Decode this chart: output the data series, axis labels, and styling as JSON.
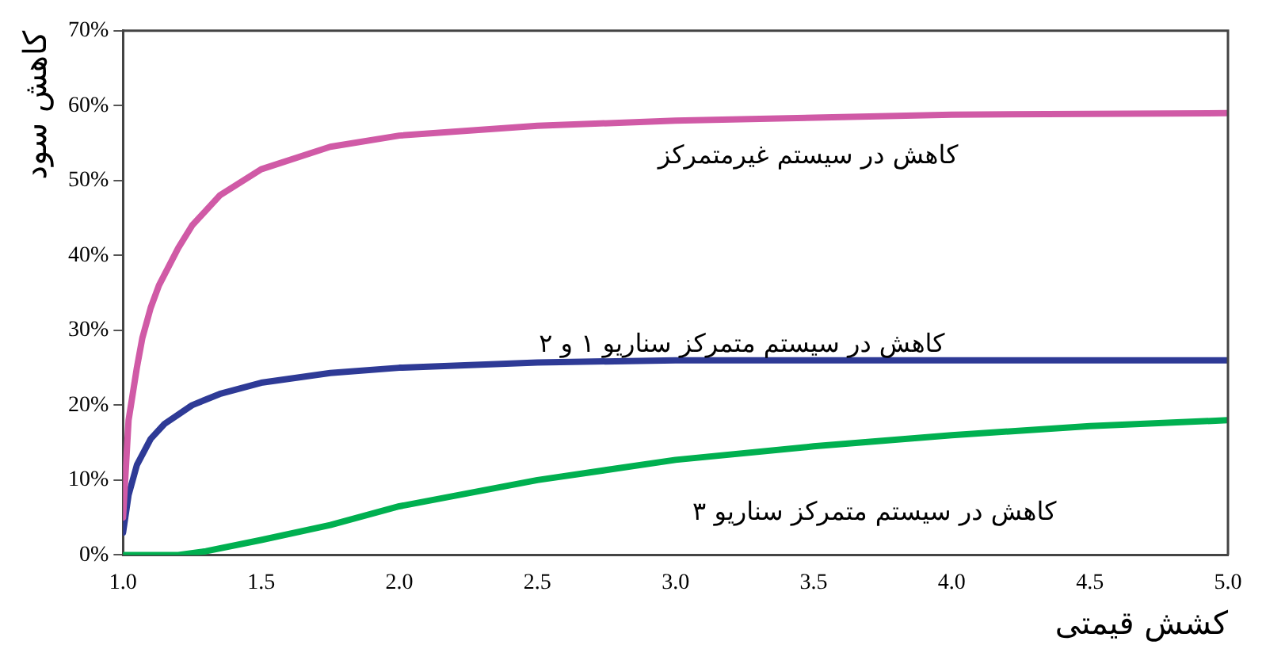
{
  "chart_data": {
    "type": "line",
    "xlabel": "کشش قیمتی",
    "ylabel": "کاهش سود",
    "xlim": [
      1,
      5
    ],
    "xticks": [
      {
        "value": 1,
        "label": "1.0"
      },
      1.5,
      {
        "value": 2,
        "label": "2.0"
      },
      2.5,
      {
        "value": 3,
        "label": "3.0"
      },
      3.5,
      {
        "value": 4,
        "label": "4.0"
      },
      4.5,
      {
        "value": 5,
        "label": "5.0"
      }
    ],
    "ylim": [
      0,
      70
    ],
    "yticks": [
      {
        "value": 0,
        "label": "0%"
      },
      {
        "value": 10,
        "label": "10%"
      },
      {
        "value": 20,
        "label": "20%"
      },
      {
        "value": 30,
        "label": "30%"
      },
      {
        "value": 40,
        "label": "40%"
      },
      {
        "value": 50,
        "label": "50%"
      },
      {
        "value": 60,
        "label": "60%"
      },
      {
        "value": 70,
        "label": "70%"
      }
    ],
    "grid": false,
    "legend": false,
    "marker": "none",
    "line_style": "solid",
    "series": [
      {
        "name": "کاهش در سیستم غیرمتمرکز",
        "color": "#d05aa6",
        "x": [
          1,
          1.02,
          1.05,
          1.07,
          1.1,
          1.13,
          1.2,
          1.25,
          1.35,
          1.5,
          1.75,
          2,
          2.5,
          3,
          4,
          5
        ],
        "values": [
          5,
          18,
          25,
          29,
          33,
          36,
          41,
          44,
          48,
          51.5,
          54.5,
          56,
          57.3,
          58,
          58.8,
          59
        ]
      },
      {
        "name": "کاهش در سیستم متمرکز سناریو ۱ و ۲",
        "color": "#2e3a96",
        "x": [
          1,
          1.02,
          1.05,
          1.1,
          1.15,
          1.25,
          1.35,
          1.5,
          1.75,
          2,
          2.5,
          3,
          4,
          5
        ],
        "values": [
          3,
          8,
          12,
          15.5,
          17.5,
          20,
          21.5,
          23,
          24.3,
          25,
          25.7,
          26,
          26,
          26
        ]
      },
      {
        "name": "کاهش در سیستم متمرکز سناریو ۳",
        "color": "#00b050",
        "x": [
          1,
          1.2,
          1.3,
          1.5,
          1.75,
          2,
          2.5,
          3,
          3.5,
          4,
          4.5,
          5
        ],
        "values": [
          0,
          0,
          0.5,
          2,
          4,
          6.5,
          10,
          12.7,
          14.5,
          16,
          17.2,
          18
        ]
      }
    ]
  }
}
